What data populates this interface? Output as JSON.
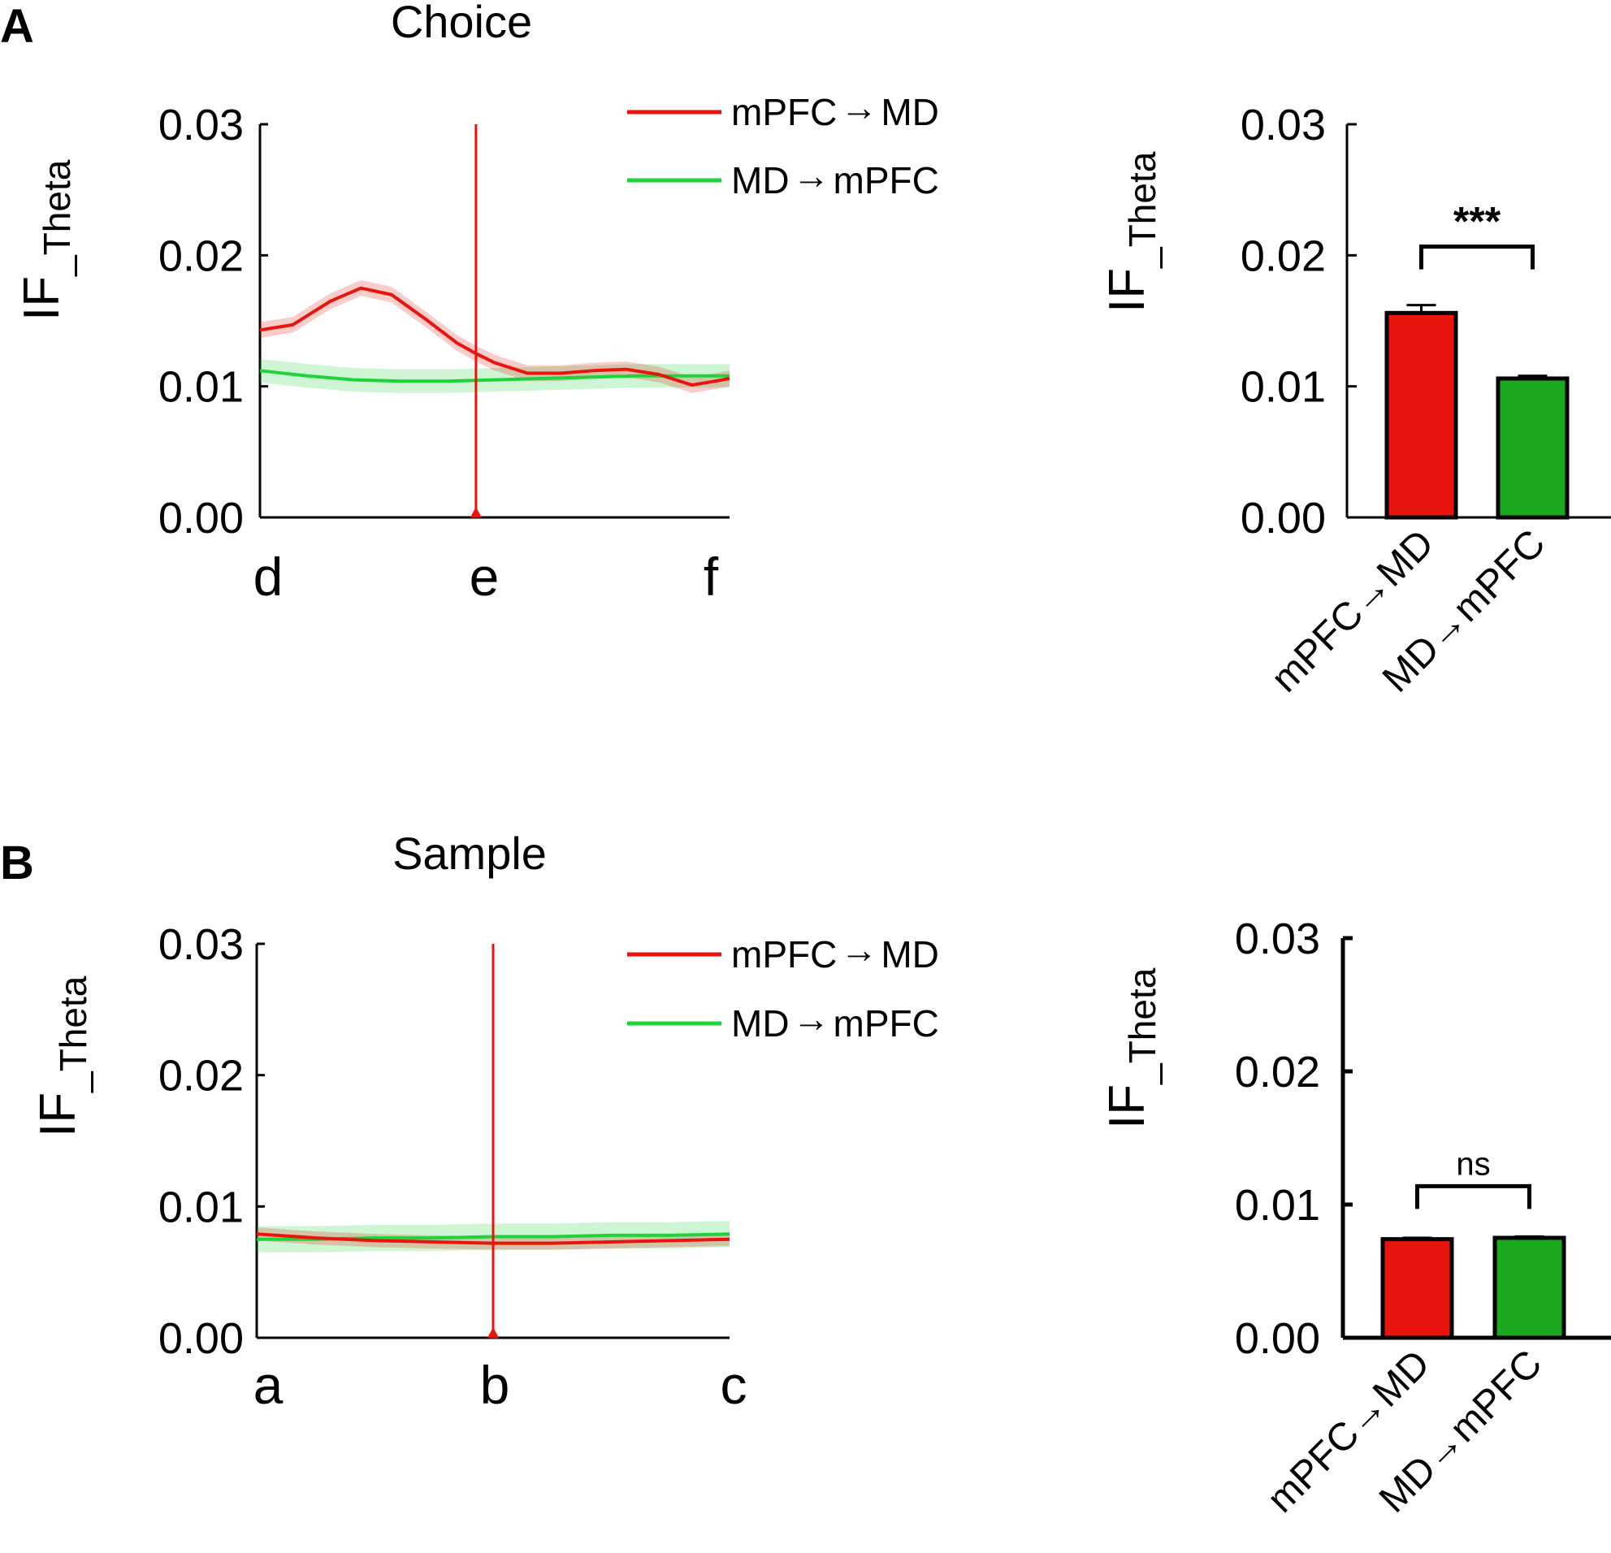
{
  "panels": [
    {
      "letter": "A",
      "title": "Choice",
      "colors": {
        "red": "#e8150f",
        "green": "#1fd33a",
        "axis": "#000000"
      },
      "line_chart": {
        "type": "line",
        "ylabel_main": "IF",
        "ylabel_sub": "_Theta",
        "y_ticks": [
          "0.00",
          "0.01",
          "0.02",
          "0.03"
        ],
        "ylim": [
          0,
          0.03
        ],
        "x_labels": [
          "d",
          "e",
          "f"
        ],
        "xlim": [
          0,
          2
        ],
        "marker_x": 0.92,
        "series": [
          {
            "name": "mPFC→MD",
            "legend_left": "mPFC",
            "legend_right": "MD",
            "color": "#e8150f",
            "x": [
              0,
              0.14,
              0.3,
              0.43,
              0.56,
              0.7,
              0.84,
              0.92,
              1.0,
              1.14,
              1.28,
              1.42,
              1.56,
              1.7,
              1.84,
              1.94,
              2.0
            ],
            "y": [
              0.0143,
              0.0147,
              0.0165,
              0.0175,
              0.017,
              0.0152,
              0.0133,
              0.0125,
              0.0118,
              0.011,
              0.011,
              0.0112,
              0.0113,
              0.0109,
              0.0101,
              0.0104,
              0.0106
            ],
            "err": 0.0006
          },
          {
            "name": "MD→mPFC",
            "legend_left": "MD",
            "legend_right": "mPFC",
            "color": "#1fd33a",
            "x": [
              0,
              0.2,
              0.4,
              0.6,
              0.8,
              1.0,
              1.2,
              1.4,
              1.6,
              1.8,
              2.0
            ],
            "y": [
              0.0112,
              0.0108,
              0.0105,
              0.0104,
              0.0104,
              0.0105,
              0.0106,
              0.0107,
              0.0108,
              0.0108,
              0.0108
            ],
            "err": 0.0009
          }
        ]
      },
      "bar_chart": {
        "type": "bar",
        "ylabel_main": "IF",
        "ylabel_sub": "_Theta",
        "y_ticks": [
          "0.00",
          "0.01",
          "0.02",
          "0.03"
        ],
        "ylim": [
          0,
          0.03
        ],
        "categories": [
          "mPFC→MD",
          "MD→mPFC"
        ],
        "values": [
          0.0156,
          0.0106
        ],
        "errors": [
          0.0006,
          0.0002
        ],
        "colors": [
          "#e8150f",
          "#1aa81f"
        ],
        "significance": "***"
      }
    },
    {
      "letter": "B",
      "title": "Sample",
      "colors": {
        "red": "#e8150f",
        "green": "#1fd33a",
        "axis": "#000000"
      },
      "line_chart": {
        "type": "line",
        "ylabel_main": "IF",
        "ylabel_sub": "_Theta",
        "y_ticks": [
          "0.00",
          "0.01",
          "0.02",
          "0.03"
        ],
        "ylim": [
          0,
          0.03
        ],
        "x_labels": [
          "a",
          "b",
          "c"
        ],
        "xlim": [
          0,
          2
        ],
        "marker_x": 1.0,
        "series": [
          {
            "name": "mPFC→MD",
            "legend_left": "mPFC",
            "legend_right": "MD",
            "color": "#e8150f",
            "x": [
              0,
              0.25,
              0.5,
              0.75,
              1.0,
              1.25,
              1.5,
              1.75,
              2.0
            ],
            "y": [
              0.0079,
              0.0076,
              0.0074,
              0.0073,
              0.0072,
              0.0072,
              0.0073,
              0.0074,
              0.0075
            ],
            "err": 0.0005
          },
          {
            "name": "MD→mPFC",
            "legend_left": "MD",
            "legend_right": "mPFC",
            "color": "#1fd33a",
            "x": [
              0,
              0.25,
              0.5,
              0.75,
              1.0,
              1.25,
              1.5,
              1.75,
              2.0
            ],
            "y": [
              0.0075,
              0.0075,
              0.0076,
              0.0076,
              0.0077,
              0.0077,
              0.0078,
              0.0078,
              0.0079
            ],
            "err": 0.001
          }
        ]
      },
      "bar_chart": {
        "type": "bar",
        "ylabel_main": "IF",
        "ylabel_sub": "_Theta",
        "y_ticks": [
          "0.00",
          "0.01",
          "0.02",
          "0.03"
        ],
        "ylim": [
          0,
          0.03
        ],
        "categories": [
          "mPFC→MD",
          "MD→mPFC"
        ],
        "values": [
          0.0074,
          0.0075
        ],
        "errors": [
          0.0001,
          0.0001
        ],
        "colors": [
          "#e8150f",
          "#1aa81f"
        ],
        "significance": "ns"
      }
    }
  ],
  "chart_data": [
    {
      "type": "line",
      "title": "Choice",
      "ylabel": "IF_Theta",
      "ylim": [
        0,
        0.03
      ],
      "x_labels": [
        "d",
        "e",
        "f"
      ],
      "series": [
        {
          "name": "mPFC→MD",
          "y": [
            0.0143,
            0.0147,
            0.0165,
            0.0175,
            0.017,
            0.0152,
            0.0133,
            0.0125,
            0.0118,
            0.011,
            0.011,
            0.0112,
            0.0113,
            0.0109,
            0.0101,
            0.0104,
            0.0106
          ]
        },
        {
          "name": "MD→mPFC",
          "y": [
            0.0112,
            0.0108,
            0.0105,
            0.0104,
            0.0104,
            0.0105,
            0.0106,
            0.0107,
            0.0108,
            0.0108,
            0.0108
          ]
        }
      ]
    },
    {
      "type": "bar",
      "ylabel": "IF_Theta",
      "ylim": [
        0,
        0.03
      ],
      "categories": [
        "mPFC→MD",
        "MD→mPFC"
      ],
      "values": [
        0.0156,
        0.0106
      ],
      "annotation": "***"
    },
    {
      "type": "line",
      "title": "Sample",
      "ylabel": "IF_Theta",
      "ylim": [
        0,
        0.03
      ],
      "x_labels": [
        "a",
        "b",
        "c"
      ],
      "series": [
        {
          "name": "mPFC→MD",
          "y": [
            0.0079,
            0.0076,
            0.0074,
            0.0073,
            0.0072,
            0.0072,
            0.0073,
            0.0074,
            0.0075
          ]
        },
        {
          "name": "MD→mPFC",
          "y": [
            0.0075,
            0.0075,
            0.0076,
            0.0076,
            0.0077,
            0.0077,
            0.0078,
            0.0078,
            0.0079
          ]
        }
      ]
    },
    {
      "type": "bar",
      "ylabel": "IF_Theta",
      "ylim": [
        0,
        0.03
      ],
      "categories": [
        "mPFC→MD",
        "MD→mPFC"
      ],
      "values": [
        0.0074,
        0.0075
      ],
      "annotation": "ns"
    }
  ]
}
